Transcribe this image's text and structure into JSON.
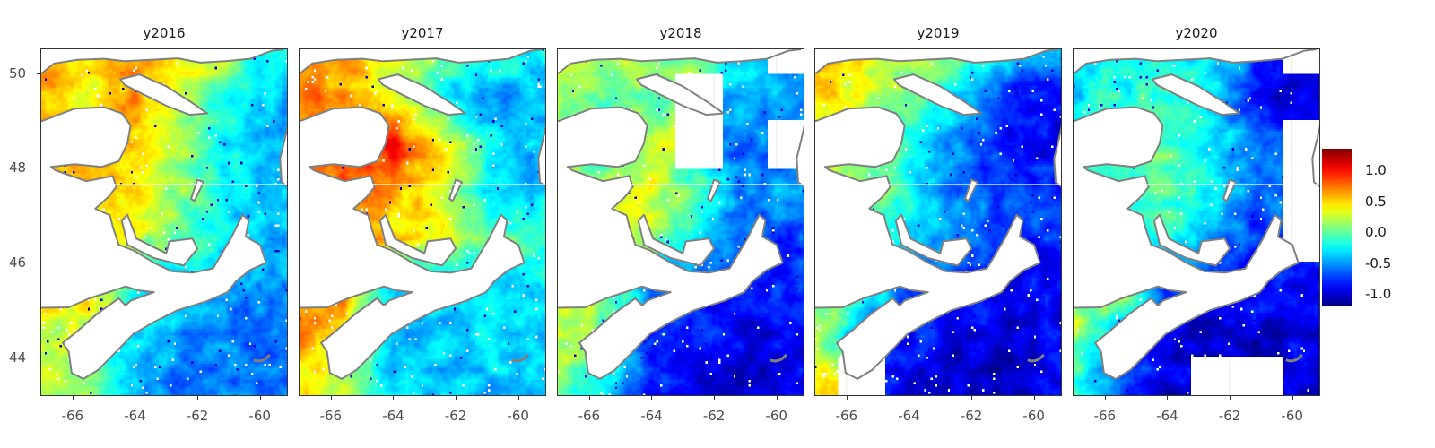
{
  "chart_data": {
    "type": "heatmap",
    "subtype": "faceted raster map",
    "facets": [
      "y2016",
      "y2017",
      "y2018",
      "y2019",
      "y2020"
    ],
    "x_ticks": [
      -66,
      -64,
      -62,
      -60
    ],
    "y_ticks": [
      44,
      46,
      48,
      50
    ],
    "xlim": [
      -67.03,
      -59.1
    ],
    "ylim": [
      43.19,
      50.52
    ],
    "grid": true,
    "colorbar": {
      "ticks": [
        "1.0",
        "0.5",
        "0.0",
        "-0.5",
        "-1.0"
      ],
      "tick_values": [
        1.0,
        0.5,
        0.0,
        -0.5,
        -1.0
      ],
      "range": [
        -1.2,
        1.35
      ],
      "colormap": "jet",
      "placement": "right"
    },
    "land_color": "#ffffff",
    "coast_color": "#808080",
    "grid_lon": [
      -67,
      -65.5,
      -64,
      -62.5,
      -61,
      -59.5
    ],
    "grid_lat": [
      50.5,
      49.5,
      48.5,
      47.5,
      46.5,
      45.5,
      44.5,
      43.5
    ],
    "values": {
      "y2016": [
        [
          0.7,
          0.6,
          0.6,
          0.5,
          0.3,
          -0.3
        ],
        [
          0.6,
          0.3,
          0.7,
          0.2,
          -0.2,
          -0.4
        ],
        [
          0.6,
          0.6,
          0.5,
          0.1,
          -0.3,
          -0.4
        ],
        [
          0.5,
          0.5,
          0.4,
          0.1,
          -0.3,
          -0.4
        ],
        [
          0.4,
          0.5,
          0.3,
          0.0,
          -0.3,
          -0.4
        ],
        [
          0.5,
          0.5,
          -0.2,
          -0.4,
          -0.5,
          -0.5
        ],
        [
          0.3,
          0.2,
          -0.3,
          -0.5,
          -0.6,
          -0.5
        ],
        [
          0.3,
          0.1,
          -0.4,
          -0.6,
          -0.6,
          -0.6
        ]
      ],
      "y2017": [
        [
          0.7,
          0.6,
          0.4,
          0.1,
          0.0,
          -0.2
        ],
        [
          0.7,
          0.6,
          0.3,
          -0.3,
          -0.5,
          -0.4
        ],
        [
          0.7,
          0.8,
          1.0,
          0.5,
          -0.2,
          -0.4
        ],
        [
          0.8,
          0.8,
          0.6,
          0.4,
          -0.2,
          -0.4
        ],
        [
          0.6,
          0.6,
          0.5,
          0.3,
          0.0,
          -0.1
        ],
        [
          0.7,
          0.6,
          -0.4,
          -0.3,
          -0.4,
          -0.3
        ],
        [
          0.7,
          0.4,
          -0.4,
          -0.4,
          -0.3,
          -0.3
        ],
        [
          0.4,
          0.2,
          -0.3,
          -0.4,
          -0.4,
          -0.4
        ]
      ],
      "y2018": [
        [
          0.3,
          0.3,
          0.2,
          0.1,
          -0.3,
          null
        ],
        [
          0.2,
          0.0,
          0.0,
          null,
          -0.4,
          -0.5
        ],
        [
          0.1,
          -0.2,
          0.3,
          null,
          -0.6,
          null
        ],
        [
          0.1,
          0.2,
          0.3,
          -0.1,
          -0.6,
          -0.5
        ],
        [
          0.2,
          0.5,
          0.2,
          -0.3,
          -0.6,
          -0.7
        ],
        [
          0.2,
          0.2,
          -0.6,
          -0.7,
          -0.8,
          -0.8
        ],
        [
          0.3,
          0.0,
          -0.8,
          -0.8,
          -0.9,
          -0.9
        ],
        [
          0.1,
          -0.3,
          -0.8,
          -1.0,
          -1.0,
          -0.9
        ]
      ],
      "y2019": [
        [
          0.7,
          0.4,
          0.3,
          0.1,
          -0.2,
          -0.5
        ],
        [
          0.5,
          0.3,
          0.0,
          -0.3,
          -0.8,
          -0.9
        ],
        [
          0.3,
          0.2,
          -0.2,
          -0.5,
          -0.8,
          -0.9
        ],
        [
          0.3,
          0.2,
          -0.2,
          -0.6,
          -0.7,
          -0.8
        ],
        [
          0.4,
          0.1,
          -0.4,
          -0.5,
          -0.7,
          -0.8
        ],
        [
          0.0,
          0.0,
          -0.6,
          -0.8,
          -0.9,
          -0.9
        ],
        [
          0.2,
          -0.5,
          -0.8,
          -0.9,
          -1.0,
          -0.9
        ],
        [
          0.4,
          null,
          -0.9,
          -1.0,
          -1.0,
          -0.9
        ]
      ],
      "y2020": [
        [
          -0.3,
          -0.2,
          -0.1,
          -0.3,
          -0.6,
          null
        ],
        [
          -0.3,
          -0.2,
          -0.1,
          -0.3,
          -1.0,
          -1.0
        ],
        [
          -0.2,
          -0.1,
          0.0,
          -0.3,
          -0.6,
          null
        ],
        [
          -0.2,
          -0.2,
          0.0,
          -0.3,
          -0.6,
          null
        ],
        [
          -0.1,
          -0.2,
          -0.2,
          -0.5,
          -0.8,
          null
        ],
        [
          0.2,
          0.3,
          -0.7,
          -0.9,
          -0.8,
          -0.9
        ],
        [
          0.2,
          -0.5,
          -0.9,
          -1.0,
          -1.0,
          -0.9
        ],
        [
          -0.1,
          -0.7,
          -1.0,
          null,
          null,
          -1.0
        ]
      ]
    }
  }
}
